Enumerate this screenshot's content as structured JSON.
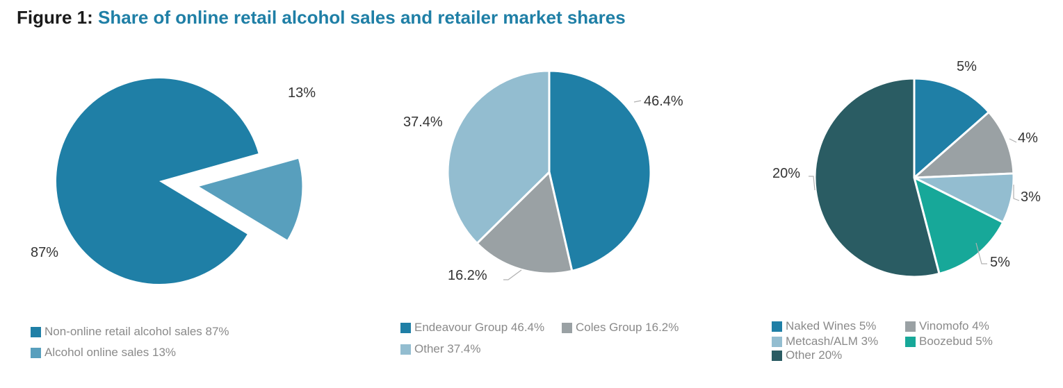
{
  "figure": {
    "prefix": "Figure 1:",
    "title": "Share of online retail alcohol sales and retailer market shares"
  },
  "chart_data": [
    {
      "type": "pie",
      "title": "",
      "slices": [
        {
          "name": "Non-online retail alcohol sales",
          "value": 87,
          "label": "87%",
          "legend": "Non-online retail alcohol sales 87%",
          "color": "#1f7fa6"
        },
        {
          "name": "Alcohol online sales",
          "value": 13,
          "label": "13%",
          "legend": "Alcohol online sales 13%",
          "color": "#589fbd",
          "exploded": true
        }
      ]
    },
    {
      "type": "pie",
      "title": "",
      "slices": [
        {
          "name": "Endeavour Group",
          "value": 46.4,
          "label": "46.4%",
          "legend": "Endeavour Group 46.4%",
          "color": "#1f7fa6"
        },
        {
          "name": "Coles Group",
          "value": 16.2,
          "label": "16.2%",
          "legend": "Coles Group 16.2%",
          "color": "#9aa1a4"
        },
        {
          "name": "Other",
          "value": 37.4,
          "label": "37.4%",
          "legend": "Other 37.4%",
          "color": "#93bdd0"
        }
      ]
    },
    {
      "type": "pie",
      "title": "",
      "slices": [
        {
          "name": "Naked Wines",
          "value": 5,
          "label": "5%",
          "legend": "Naked Wines 5%",
          "color": "#1f7fa6"
        },
        {
          "name": "Vinomofo",
          "value": 4,
          "label": "4%",
          "legend": "Vinomofo 4%",
          "color": "#9aa1a4"
        },
        {
          "name": "Metcash/ALM",
          "value": 3,
          "label": "3%",
          "legend": "Metcash/ALM 3%",
          "color": "#93bdd0"
        },
        {
          "name": "Boozebud",
          "value": 5,
          "label": "5%",
          "legend": "Boozebud 5%",
          "color": "#17a899"
        },
        {
          "name": "Other",
          "value": 20,
          "label": "20%",
          "legend": "Other 20%",
          "color": "#2a5c63"
        }
      ]
    }
  ]
}
